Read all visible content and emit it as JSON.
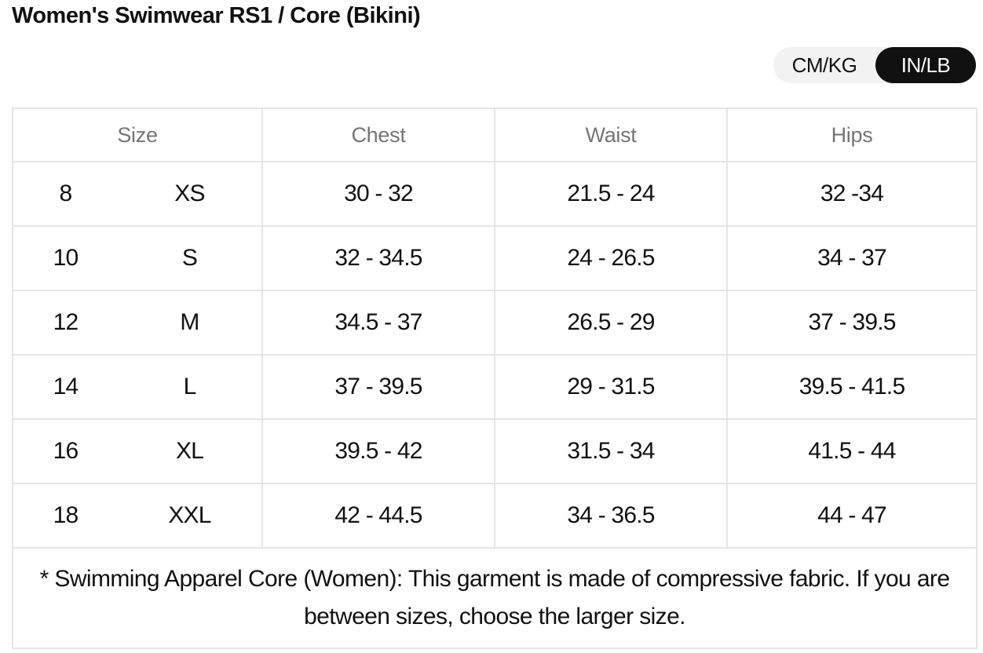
{
  "title": "Women's Swimwear RS1 / Core (Bikini)",
  "units": {
    "options": [
      "CM/KG",
      "IN/LB"
    ],
    "selected": "IN/LB"
  },
  "table": {
    "headers": [
      "Size",
      "Chest",
      "Waist",
      "Hips"
    ],
    "rows": [
      {
        "number": "8",
        "letter": "XS",
        "chest": "30 - 32",
        "waist": "21.5 - 24",
        "hips": "32 -34"
      },
      {
        "number": "10",
        "letter": "S",
        "chest": "32 - 34.5",
        "waist": "24 - 26.5",
        "hips": "34 - 37"
      },
      {
        "number": "12",
        "letter": "M",
        "chest": "34.5 - 37",
        "waist": "26.5 - 29",
        "hips": "37 - 39.5"
      },
      {
        "number": "14",
        "letter": "L",
        "chest": "37 - 39.5",
        "waist": "29 - 31.5",
        "hips": "39.5 - 41.5"
      },
      {
        "number": "16",
        "letter": "XL",
        "chest": "39.5 - 42",
        "waist": "31.5 - 34",
        "hips": "41.5 - 44"
      },
      {
        "number": "18",
        "letter": "XXL",
        "chest": "42 - 44.5",
        "waist": "34 - 36.5",
        "hips": "44 - 47"
      }
    ],
    "note": "* Swimming Apparel Core (Women): This garment is made of compressive fabric. If you are between sizes, choose the larger size."
  },
  "colors": {
    "text": "#111111",
    "header_text": "#757575",
    "border": "#e5e5e5",
    "toggle_bg": "#f2f2f2",
    "toggle_active": "#111111"
  }
}
